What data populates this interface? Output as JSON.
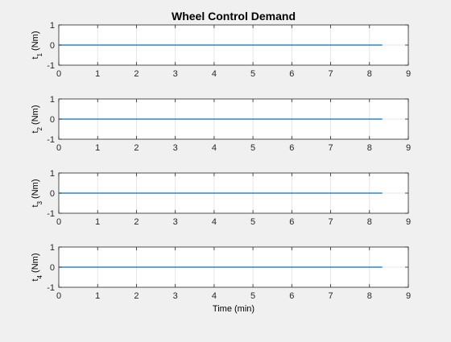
{
  "figure": {
    "title": "Wheel Control Demand",
    "xlabel": "Time (min)"
  },
  "colors": {
    "background": "#f0f0f0",
    "axes_background": "#ffffff",
    "axis": "#262626",
    "grid": "#dfdfdf",
    "line": "#0072bd"
  },
  "chart_data": [
    {
      "type": "line",
      "title": "Wheel Control Demand",
      "ylabel_base": "t",
      "ylabel_sub": "1",
      "ylabel_unit": " (Nm)",
      "xlabel": "",
      "xlim": [
        0,
        9
      ],
      "ylim": [
        -1,
        1
      ],
      "xticks": [
        0,
        1,
        2,
        3,
        4,
        5,
        6,
        7,
        8,
        9
      ],
      "yticks": [
        -1,
        0,
        1
      ],
      "grid": true,
      "series": [
        {
          "x": [
            0,
            8.33
          ],
          "values": [
            0,
            0
          ]
        }
      ]
    },
    {
      "type": "line",
      "title": "",
      "ylabel_base": "t",
      "ylabel_sub": "2",
      "ylabel_unit": " (Nm)",
      "xlabel": "",
      "xlim": [
        0,
        9
      ],
      "ylim": [
        -1,
        1
      ],
      "xticks": [
        0,
        1,
        2,
        3,
        4,
        5,
        6,
        7,
        8,
        9
      ],
      "yticks": [
        -1,
        0,
        1
      ],
      "grid": true,
      "series": [
        {
          "x": [
            0,
            8.33
          ],
          "values": [
            0,
            0
          ]
        }
      ]
    },
    {
      "type": "line",
      "title": "",
      "ylabel_base": "t",
      "ylabel_sub": "3",
      "ylabel_unit": " (Nm)",
      "xlabel": "",
      "xlim": [
        0,
        9
      ],
      "ylim": [
        -1,
        1
      ],
      "xticks": [
        0,
        1,
        2,
        3,
        4,
        5,
        6,
        7,
        8,
        9
      ],
      "yticks": [
        -1,
        0,
        1
      ],
      "grid": true,
      "series": [
        {
          "x": [
            0,
            8.33
          ],
          "values": [
            0,
            0
          ]
        }
      ]
    },
    {
      "type": "line",
      "title": "",
      "ylabel_base": "t",
      "ylabel_sub": "4",
      "ylabel_unit": " (Nm)",
      "xlabel": "Time (min)",
      "xlim": [
        0,
        9
      ],
      "ylim": [
        -1,
        1
      ],
      "xticks": [
        0,
        1,
        2,
        3,
        4,
        5,
        6,
        7,
        8,
        9
      ],
      "yticks": [
        -1,
        0,
        1
      ],
      "grid": true,
      "series": [
        {
          "x": [
            0,
            8.33
          ],
          "values": [
            0,
            0
          ]
        }
      ]
    }
  ]
}
